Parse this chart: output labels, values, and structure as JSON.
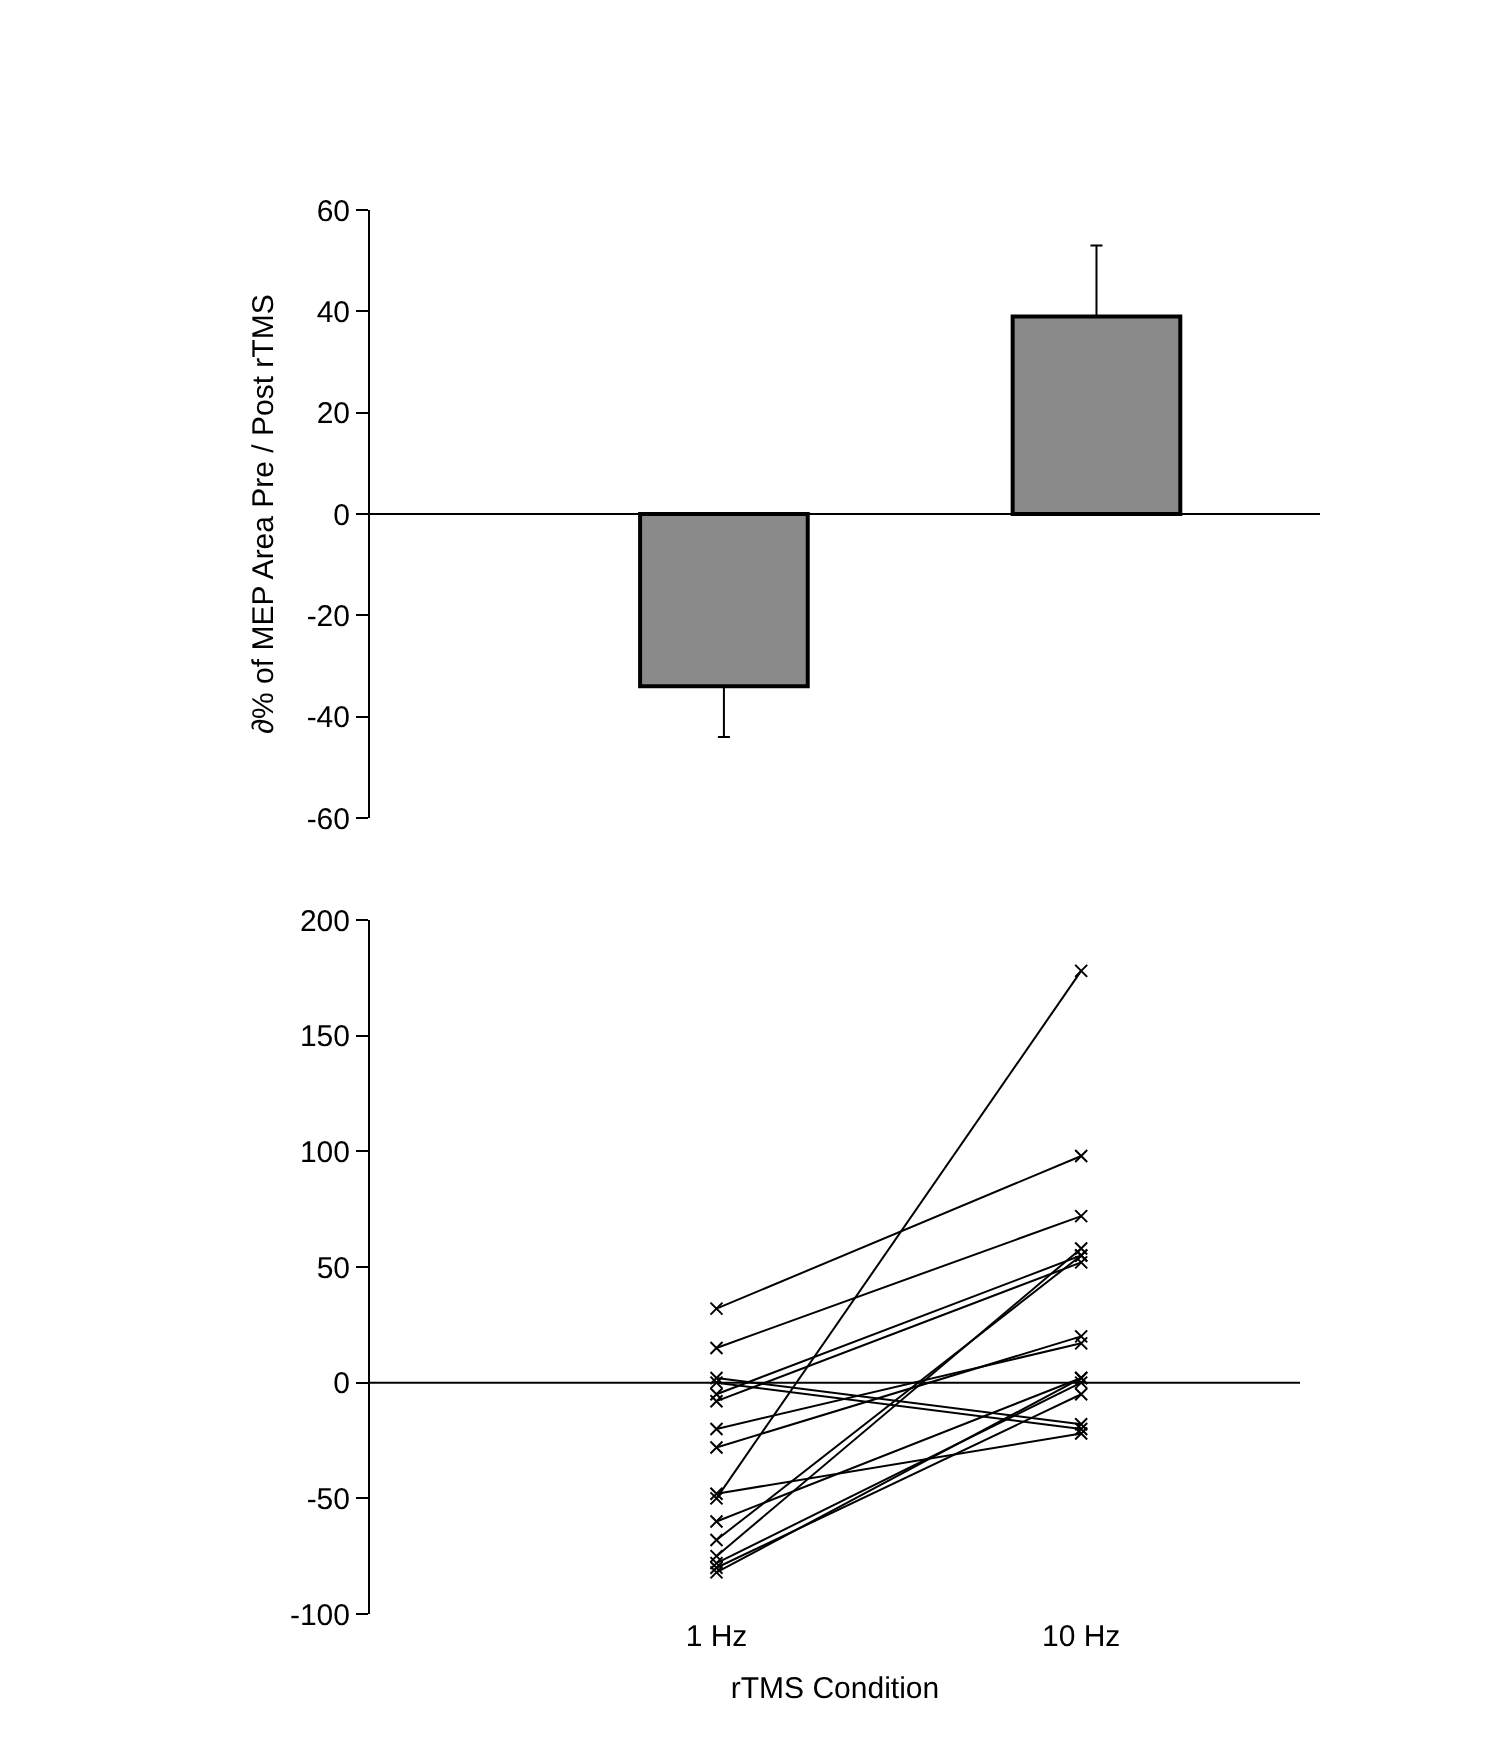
{
  "chart_data": [
    {
      "type": "bar",
      "categories": [
        null,
        null
      ],
      "values": [
        -34,
        39
      ],
      "colors": [
        "#8a8a8a",
        "#8a8a8a"
      ],
      "errors": [
        [
          -44,
          -34
        ],
        [
          39,
          53
        ]
      ],
      "ylim": [
        -60,
        60
      ],
      "yticks": [
        -60,
        -40,
        -20,
        0,
        20,
        40,
        60
      ],
      "ylabel": "∂% of MEP Area Pre / Post rTMS",
      "ref_lines": [
        {
          "axis": "y",
          "value": 0,
          "color": "#000000"
        }
      ]
    },
    {
      "type": "line",
      "categories": [
        "1 Hz",
        "10 Hz"
      ],
      "xlabel": "rTMS Condition",
      "ylim": [
        -100,
        200
      ],
      "yticks": [
        -100,
        -50,
        0,
        50,
        100,
        150,
        200
      ],
      "marker": "cross",
      "line_style": "solid",
      "ref_lines": [
        {
          "axis": "y",
          "value": 0,
          "color": "#000000"
        }
      ],
      "series": [
        {
          "color": "#000000",
          "values": [
            32,
            98
          ]
        },
        {
          "color": "#000000",
          "values": [
            15,
            72
          ]
        },
        {
          "color": "#000000",
          "values": [
            -50,
            178
          ]
        },
        {
          "color": "#000000",
          "values": [
            0,
            -20
          ]
        },
        {
          "color": "#000000",
          "values": [
            -5,
            55
          ]
        },
        {
          "color": "#000000",
          "values": [
            -8,
            52
          ]
        },
        {
          "color": "#000000",
          "values": [
            -20,
            17
          ]
        },
        {
          "color": "#000000",
          "values": [
            -28,
            20
          ]
        },
        {
          "color": "#000000",
          "values": [
            -48,
            -22
          ]
        },
        {
          "color": "#000000",
          "values": [
            -60,
            2
          ]
        },
        {
          "color": "#000000",
          "values": [
            -68,
            55
          ]
        },
        {
          "color": "#000000",
          "values": [
            -75,
            58
          ]
        },
        {
          "color": "#000000",
          "values": [
            -78,
            0
          ]
        },
        {
          "color": "#000000",
          "values": [
            -80,
            -5
          ]
        },
        {
          "color": "#000000",
          "values": [
            -82,
            2
          ]
        },
        {
          "color": "#000000",
          "values": [
            2,
            -18
          ]
        }
      ]
    }
  ]
}
